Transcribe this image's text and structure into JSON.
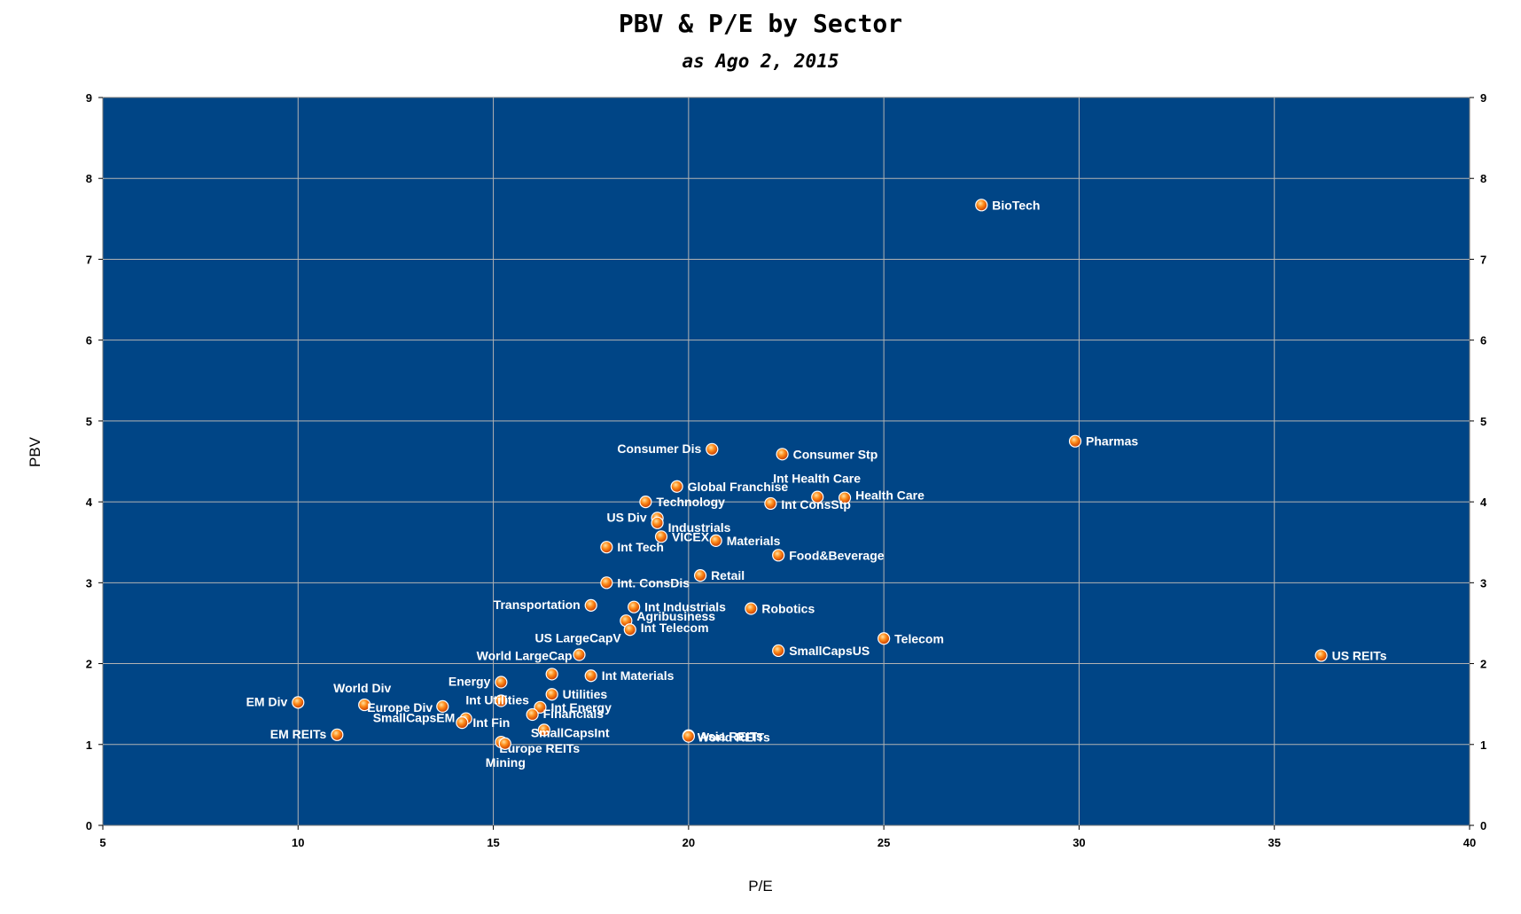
{
  "chart_data": {
    "type": "scatter",
    "title": "PBV & P/E by Sector",
    "subtitle": "as Ago 2, 2015",
    "xlabel": "P/E",
    "ylabel": "PBV",
    "xlim": [
      5,
      40
    ],
    "ylim": [
      0,
      9
    ],
    "x_ticks": [
      5,
      10,
      15,
      20,
      25,
      30,
      35,
      40
    ],
    "y_ticks": [
      0,
      1,
      2,
      3,
      4,
      5,
      6,
      7,
      8,
      9
    ],
    "grid": true,
    "plot_background": "#004586",
    "marker_color": "#ff8000",
    "label_color": "#ffffff",
    "points": [
      {
        "label": "BioTech",
        "x": 27.5,
        "y": 7.67
      },
      {
        "label": "Pharmas",
        "x": 29.9,
        "y": 4.75
      },
      {
        "label": "US REITs",
        "x": 36.2,
        "y": 2.1
      },
      {
        "label": "Consumer Dis",
        "x": 20.6,
        "y": 4.65
      },
      {
        "label": "Consumer Stp",
        "x": 22.4,
        "y": 4.59
      },
      {
        "label": "Int Health Care",
        "x": 23.3,
        "y": 4.06
      },
      {
        "label": "Health Care",
        "x": 24.0,
        "y": 4.05
      },
      {
        "label": "Int ConsStp",
        "x": 22.1,
        "y": 3.98
      },
      {
        "label": "Global Franchise",
        "x": 19.7,
        "y": 4.19
      },
      {
        "label": "Technology",
        "x": 18.9,
        "y": 4.0
      },
      {
        "label": "US Div",
        "x": 19.2,
        "y": 3.8
      },
      {
        "label": "Industrials",
        "x": 19.2,
        "y": 3.74
      },
      {
        "label": "VICEX",
        "x": 19.3,
        "y": 3.57
      },
      {
        "label": "Materials",
        "x": 20.7,
        "y": 3.52
      },
      {
        "label": "Int Tech",
        "x": 17.9,
        "y": 3.44
      },
      {
        "label": "Food&Beverage",
        "x": 22.3,
        "y": 3.34
      },
      {
        "label": "Retail",
        "x": 20.3,
        "y": 3.09
      },
      {
        "label": "Int. ConsDis",
        "x": 17.9,
        "y": 3.0
      },
      {
        "label": "Transportation",
        "x": 17.5,
        "y": 2.72
      },
      {
        "label": "Int Industrials",
        "x": 18.6,
        "y": 2.7
      },
      {
        "label": "Robotics",
        "x": 21.6,
        "y": 2.68
      },
      {
        "label": "Agribusiness",
        "x": 18.4,
        "y": 2.53
      },
      {
        "label": "Int Telecom",
        "x": 18.5,
        "y": 2.42
      },
      {
        "label": "Telecom",
        "x": 25.0,
        "y": 2.31
      },
      {
        "label": "US LargeCapV",
        "x": 17.2,
        "y": 2.11
      },
      {
        "label": "SmallCapsUS",
        "x": 22.3,
        "y": 2.16
      },
      {
        "label": "World LargeCap",
        "x": 16.5,
        "y": 1.87
      },
      {
        "label": "Int Materials",
        "x": 17.5,
        "y": 1.85
      },
      {
        "label": "Energy",
        "x": 15.2,
        "y": 1.77
      },
      {
        "label": "World Div",
        "x": 11.7,
        "y": 1.49
      },
      {
        "label": "EM Div",
        "x": 10.0,
        "y": 1.52
      },
      {
        "label": "Utilities",
        "x": 16.5,
        "y": 1.62
      },
      {
        "label": "Int Utilities",
        "x": 15.2,
        "y": 1.54
      },
      {
        "label": "Int Energy",
        "x": 16.2,
        "y": 1.46
      },
      {
        "label": "Europe Div",
        "x": 13.7,
        "y": 1.47
      },
      {
        "label": "Financials",
        "x": 16.0,
        "y": 1.37
      },
      {
        "label": "SmallCapsEM",
        "x": 14.3,
        "y": 1.32
      },
      {
        "label": "Int Fin",
        "x": 14.2,
        "y": 1.27
      },
      {
        "label": "SmallCapsInt",
        "x": 16.3,
        "y": 1.18
      },
      {
        "label": "EM REITs",
        "x": 11.0,
        "y": 1.12
      },
      {
        "label": "Asia REITs",
        "x": 20.0,
        "y": 1.11
      },
      {
        "label": "World REITs",
        "x": 20.0,
        "y": 1.1
      },
      {
        "label": "Europe REITs",
        "x": 15.2,
        "y": 1.03
      },
      {
        "label": "Mining",
        "x": 15.3,
        "y": 1.01
      }
    ]
  }
}
